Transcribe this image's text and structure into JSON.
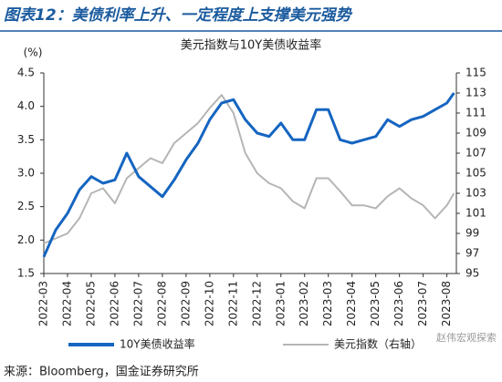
{
  "header": "图表12：美债利率上升、一定程度上支撑美元强势",
  "source": "来源：Bloomberg，国金证券研究所",
  "watermark": "赵伟宏观探索",
  "chart_data": {
    "type": "line",
    "title": "美元指数与10Y美债收益率",
    "y_label": "(%)",
    "x": [
      0,
      0.5,
      1,
      1.5,
      2,
      2.5,
      3,
      3.5,
      4,
      4.5,
      5,
      5.5,
      6,
      6.5,
      7,
      7.5,
      8,
      8.5,
      9,
      9.5,
      10,
      10.5,
      11,
      11.5,
      12,
      12.5,
      13,
      13.5,
      14,
      14.5,
      15,
      15.5,
      16,
      16.5,
      17,
      17.3
    ],
    "xlim": [
      0,
      17.4
    ],
    "xticks": [
      {
        "value": 0,
        "label": "2022-03"
      },
      {
        "value": 1,
        "label": "2022-04"
      },
      {
        "value": 2,
        "label": "2022-05"
      },
      {
        "value": 3,
        "label": "2022-06"
      },
      {
        "value": 4,
        "label": "2022-07"
      },
      {
        "value": 5,
        "label": "2022-08"
      },
      {
        "value": 6,
        "label": "2022-09"
      },
      {
        "value": 7,
        "label": "2022-10"
      },
      {
        "value": 8,
        "label": "2022-11"
      },
      {
        "value": 9,
        "label": "2022-12"
      },
      {
        "value": 10,
        "label": "2023-01"
      },
      {
        "value": 11,
        "label": "2023-02"
      },
      {
        "value": 12,
        "label": "2023-03"
      },
      {
        "value": 13,
        "label": "2023-04"
      },
      {
        "value": 14,
        "label": "2023-05"
      },
      {
        "value": 15,
        "label": "2023-06"
      },
      {
        "value": 16,
        "label": "2023-07"
      },
      {
        "value": 17,
        "label": "2023-08"
      }
    ],
    "ylim": [
      1.5,
      4.5
    ],
    "yticks": [
      1.5,
      {
        "value": 2,
        "label": "2.0"
      },
      2.5,
      {
        "value": 3,
        "label": "3.0"
      },
      3.5,
      {
        "value": 4,
        "label": "4.0"
      },
      4.5
    ],
    "y2lim": [
      95,
      115
    ],
    "y2ticks": [
      95,
      97,
      99,
      101,
      103,
      105,
      107,
      109,
      111,
      113,
      115
    ],
    "series": [
      {
        "name": "10Y美债收益率",
        "color": "#1565c0",
        "values": [
          1.75,
          2.15,
          2.4,
          2.75,
          2.95,
          2.85,
          2.9,
          3.3,
          2.95,
          2.8,
          2.65,
          2.9,
          3.2,
          3.45,
          3.8,
          4.05,
          4.1,
          3.8,
          3.6,
          3.55,
          3.75,
          3.5,
          3.5,
          3.95,
          3.95,
          3.5,
          3.45,
          3.5,
          3.55,
          3.8,
          3.7,
          3.8,
          3.85,
          3.95,
          4.05,
          4.2
        ]
      },
      {
        "name": "美元指数（右轴）",
        "color": "#b5b5b5",
        "axis": "y2",
        "values": [
          98,
          98.5,
          99,
          100.5,
          103,
          103.5,
          102,
          104.5,
          105.5,
          106.5,
          106,
          108,
          109,
          110,
          111.5,
          112.8,
          111,
          107,
          105,
          104,
          103.5,
          102.2,
          101.5,
          104.5,
          104.5,
          103.2,
          101.8,
          101.8,
          101.5,
          102.7,
          103.5,
          102.5,
          101.8,
          100.5,
          101.8,
          103
        ]
      }
    ]
  }
}
